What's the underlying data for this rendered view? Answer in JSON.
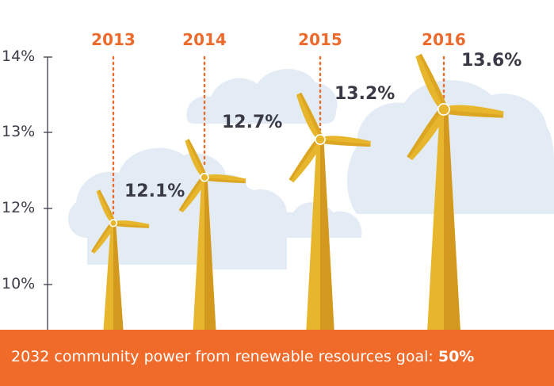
{
  "chart_data": {
    "type": "bar",
    "categories": [
      "2013",
      "2014",
      "2015",
      "2016"
    ],
    "values": [
      12.1,
      12.7,
      13.2,
      13.6
    ],
    "value_labels": [
      "12.1%",
      "12.7%",
      "13.2%",
      "13.6%"
    ],
    "yticks": [
      "10%",
      "12%",
      "13%",
      "14%"
    ],
    "ylim": [
      10,
      14
    ],
    "grid": false,
    "title": "",
    "xlabel": "",
    "ylabel": ""
  },
  "footer": {
    "text": "2032 community power from renewable resources goal:",
    "goal": "50%"
  },
  "colors": {
    "accent": "#ec6a2c",
    "footer_bg": "#f06a2a",
    "turbine_light": "#e7b62c",
    "turbine_dark": "#d3991e",
    "cloud": "#e3ecf5",
    "text_dark": "#3a3a46"
  }
}
